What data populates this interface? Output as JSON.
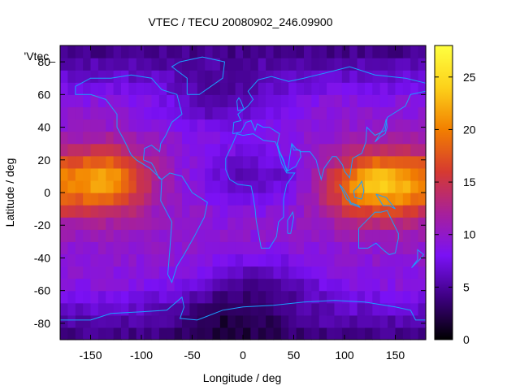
{
  "chart_data": {
    "type": "heatmap",
    "title": "VTEC / TECU 20080902_246.09900",
    "xlabel": "Longitude / deg",
    "ylabel": "Latitude / deg",
    "key_label": "'Vtec_",
    "xlim": [
      -180,
      180
    ],
    "ylim": [
      -90,
      90
    ],
    "xticks": [
      -150,
      -100,
      -50,
      0,
      50,
      100,
      150
    ],
    "yticks": [
      -80,
      -60,
      -40,
      -20,
      0,
      20,
      40,
      60,
      80
    ],
    "colorbar": {
      "range": [
        0,
        28
      ],
      "ticks": [
        0,
        5,
        10,
        15,
        20,
        25
      ],
      "palette": [
        "#000000",
        "#3d0080",
        "#7a11f5",
        "#a7209a",
        "#d63a30",
        "#f27f00",
        "#fcd11a",
        "#ffff40"
      ]
    },
    "grid_step_deg": 7.5,
    "features": {
      "background_tec": 8,
      "crests": [
        {
          "lon": -135,
          "lat": 8,
          "peak": 19,
          "lon_width": 30,
          "lat_width": 14
        },
        {
          "lon": 135,
          "lat": 5,
          "peak": 22,
          "lon_width": 38,
          "lat_width": 14
        }
      ],
      "low_regions": [
        {
          "lon": -20,
          "lat": 60,
          "value": 4
        },
        {
          "lon": 10,
          "lat": 10,
          "value": 5
        },
        {
          "lon": 20,
          "lat": -60,
          "value": 4
        },
        {
          "lon": -10,
          "lat": -80,
          "value": 1
        }
      ]
    }
  }
}
